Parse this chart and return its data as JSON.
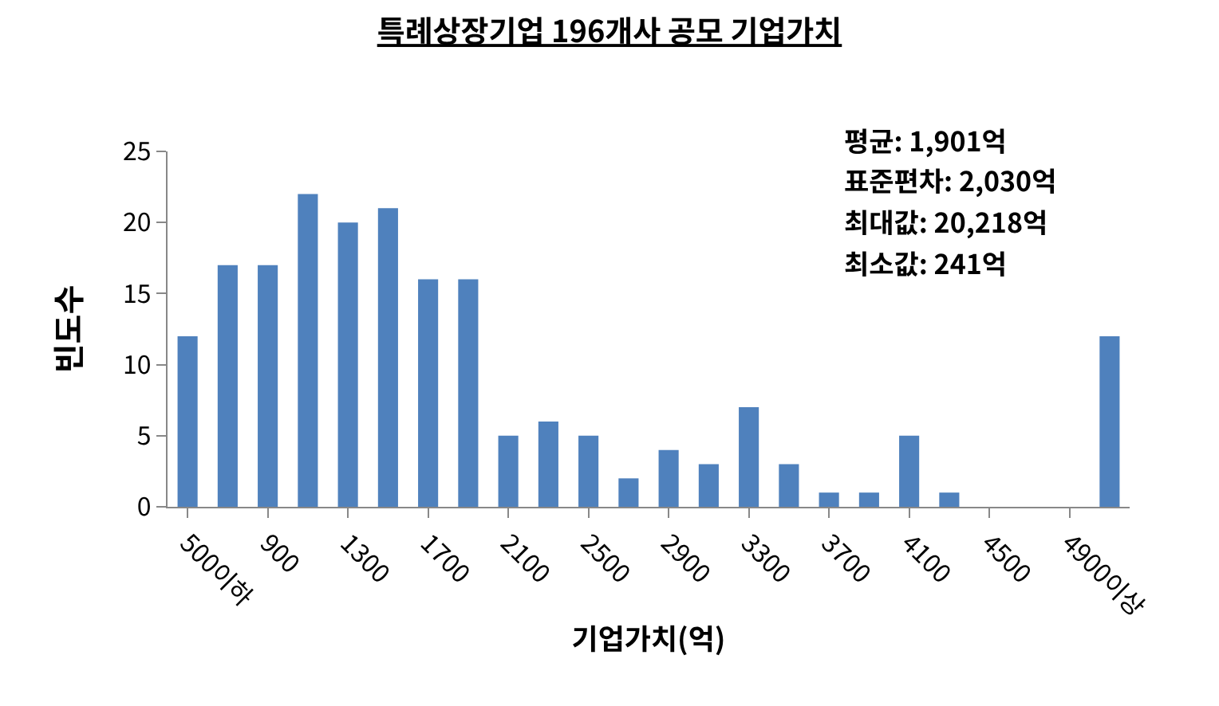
{
  "chart_data": {
    "type": "bar",
    "title": "특례상장기업 196개사 공모 기업가치",
    "xlabel": "기업가치(억)",
    "ylabel": "빈도수",
    "categories": [
      "500이하",
      null,
      "900",
      null,
      "1300",
      null,
      "1700",
      null,
      "2100",
      null,
      "2500",
      null,
      "2900",
      null,
      "3300",
      null,
      "3700",
      null,
      "4100",
      null,
      "4500",
      null,
      "4900이상",
      null
    ],
    "values": [
      12,
      17,
      17,
      22,
      20,
      21,
      16,
      16,
      5,
      6,
      5,
      2,
      4,
      3,
      7,
      3,
      1,
      1,
      5,
      1,
      0,
      0,
      0,
      12
    ],
    "color": "#4f81bd",
    "ylim": [
      0,
      25
    ],
    "yticks": [
      0,
      5,
      10,
      15,
      20,
      25
    ],
    "grid": false,
    "annotations": [
      "평균: 1,901억",
      "표준편차: 2,030억",
      "최대값: 20,218억",
      "최소값: 241억"
    ]
  }
}
